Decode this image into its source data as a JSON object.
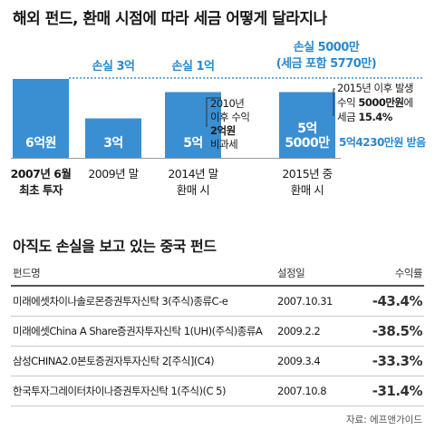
{
  "title": "해외 펀드, 환매 시점에 따라 세금 어떻게 달라지나",
  "chart_data": {
    "type": "bar",
    "categories": [
      {
        "line1": "2007년 6월",
        "line2": "최초 투자",
        "bold": true
      },
      {
        "line1": "2009년 말",
        "line2": "",
        "bold": false
      },
      {
        "line1": "2014년 말",
        "line2": "환매 시",
        "bold": false
      },
      {
        "line1": "2015년 중",
        "line2": "환매 시",
        "bold": false
      }
    ],
    "values": [
      6,
      3,
      5,
      5
    ],
    "bar_labels": [
      [
        "6억원"
      ],
      [
        "3억"
      ],
      [
        "5억"
      ],
      [
        "5억",
        "5000만"
      ]
    ],
    "reference_line_value": 6,
    "loss_labels": [
      [
        "손실 3억"
      ],
      [
        "손실 1억"
      ],
      [
        "손실 5000만",
        "(세금 포함 5770만)"
      ]
    ],
    "notes": [
      [
        "2010년",
        "이후 수익",
        "2억원",
        "비과세"
      ],
      [
        "2015년 이후 발생",
        "수익 5000만원에",
        "세금 15.4%"
      ]
    ],
    "note_bold": [
      "2억원",
      "5000만원",
      "15.4%"
    ],
    "result": "5억4230만원 받음",
    "colors": {
      "bar": "#3a8fd2",
      "accent": "#2a88cf",
      "line": "#3a8fd2"
    }
  },
  "section2_title": "아직도 손실을 보고 있는 중국 펀드",
  "table": {
    "headers": [
      "펀드명",
      "설정일",
      "수익률"
    ],
    "rows": [
      {
        "name": "미래에셋차이나솔로몬증권투자신탁 3(주식)종류C-e",
        "date": "2007.10.31",
        "ret": "-43.4%"
      },
      {
        "name": "미래에셋China A Share증권자투자신탁 1(UH)(주식)종류A",
        "date": "2009.2.2",
        "ret": "-38.5%"
      },
      {
        "name": "삼성CHINA2.0본토증권자투자신탁 2[주식](C4)",
        "date": "2009.3.4",
        "ret": "-33.3%"
      },
      {
        "name": "한국투자그레이터차이나증권투자신탁 1(주식)(C 5)",
        "date": "2007.10.8",
        "ret": "-31.4%"
      }
    ]
  },
  "source": "자료: 에프앤가이드"
}
